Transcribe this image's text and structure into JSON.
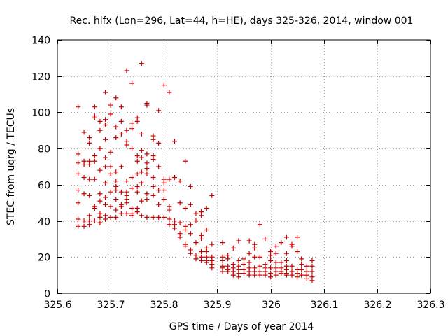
{
  "chart_data": {
    "type": "scatter",
    "title": "Rec. hlfx (Lon=296, Lat=44, h=HE), days 325-326, 2014, window 001",
    "xlabel": "GPS time / Days of year 2014",
    "ylabel": "STEC from uqrg / TECUs",
    "xlim": [
      325.6,
      326.3
    ],
    "ylim": [
      0,
      140
    ],
    "xticks": [
      325.6,
      325.7,
      325.8,
      325.9,
      326,
      326.1,
      326.2,
      326.3
    ],
    "xtick_labels": [
      "325.6",
      "325.7",
      "325.8",
      "325.9",
      "326",
      "326.1",
      "326.2",
      "326.3"
    ],
    "yticks": [
      0,
      20,
      40,
      60,
      80,
      100,
      120,
      140
    ],
    "ytick_labels": [
      "0",
      "20",
      "40",
      "60",
      "80",
      "100",
      "120",
      "140"
    ],
    "grid": true,
    "marker": "+",
    "marker_color": "#cc0000",
    "series": [
      {
        "name": "STEC",
        "points": [
          [
            325.639,
            103
          ],
          [
            325.639,
            77
          ],
          [
            325.639,
            72
          ],
          [
            325.639,
            66
          ],
          [
            325.639,
            57
          ],
          [
            325.639,
            50
          ],
          [
            325.639,
            41
          ],
          [
            325.639,
            37
          ],
          [
            325.65,
            89
          ],
          [
            325.65,
            73
          ],
          [
            325.65,
            71
          ],
          [
            325.65,
            64
          ],
          [
            325.65,
            55
          ],
          [
            325.65,
            40
          ],
          [
            325.65,
            37
          ],
          [
            325.66,
            86
          ],
          [
            325.66,
            83
          ],
          [
            325.66,
            73
          ],
          [
            325.66,
            71
          ],
          [
            325.66,
            63
          ],
          [
            325.66,
            54
          ],
          [
            325.66,
            43
          ],
          [
            325.66,
            40
          ],
          [
            325.66,
            38
          ],
          [
            325.67,
            103
          ],
          [
            325.67,
            98
          ],
          [
            325.67,
            97
          ],
          [
            325.67,
            76
          ],
          [
            325.67,
            73
          ],
          [
            325.67,
            63
          ],
          [
            325.67,
            48
          ],
          [
            325.67,
            47
          ],
          [
            325.67,
            40
          ],
          [
            325.68,
            95
          ],
          [
            325.68,
            90
          ],
          [
            325.68,
            80
          ],
          [
            325.68,
            68
          ],
          [
            325.68,
            55
          ],
          [
            325.68,
            51
          ],
          [
            325.68,
            44
          ],
          [
            325.68,
            42
          ],
          [
            325.68,
            39
          ],
          [
            325.69,
            111
          ],
          [
            325.69,
            96
          ],
          [
            325.69,
            93
          ],
          [
            325.69,
            85
          ],
          [
            325.69,
            75
          ],
          [
            325.69,
            70
          ],
          [
            325.69,
            61
          ],
          [
            325.69,
            53
          ],
          [
            325.69,
            49
          ],
          [
            325.69,
            43
          ],
          [
            325.69,
            41
          ],
          [
            325.7,
            104
          ],
          [
            325.7,
            99
          ],
          [
            325.7,
            78
          ],
          [
            325.7,
            70
          ],
          [
            325.7,
            66
          ],
          [
            325.7,
            56
          ],
          [
            325.7,
            48
          ],
          [
            325.7,
            42
          ],
          [
            325.71,
            108
          ],
          [
            325.71,
            92
          ],
          [
            325.71,
            86
          ],
          [
            325.71,
            67
          ],
          [
            325.71,
            62
          ],
          [
            325.71,
            59
          ],
          [
            325.71,
            57
          ],
          [
            325.71,
            52
          ],
          [
            325.71,
            46
          ],
          [
            325.71,
            42
          ],
          [
            325.72,
            103
          ],
          [
            325.72,
            95
          ],
          [
            325.72,
            88
          ],
          [
            325.72,
            70
          ],
          [
            325.72,
            56
          ],
          [
            325.72,
            49
          ],
          [
            325.72,
            48
          ],
          [
            325.72,
            44
          ],
          [
            325.73,
            123
          ],
          [
            325.73,
            90
          ],
          [
            325.73,
            84
          ],
          [
            325.73,
            82
          ],
          [
            325.73,
            62
          ],
          [
            325.73,
            56
          ],
          [
            325.73,
            54
          ],
          [
            325.73,
            52
          ],
          [
            325.73,
            50
          ],
          [
            325.73,
            44
          ],
          [
            325.74,
            116
          ],
          [
            325.74,
            94
          ],
          [
            325.74,
            91
          ],
          [
            325.74,
            80
          ],
          [
            325.74,
            64
          ],
          [
            325.74,
            58
          ],
          [
            325.74,
            47
          ],
          [
            325.74,
            44
          ],
          [
            325.74,
            43
          ],
          [
            325.75,
            97
          ],
          [
            325.75,
            95
          ],
          [
            325.75,
            76
          ],
          [
            325.75,
            73
          ],
          [
            325.75,
            66
          ],
          [
            325.75,
            59
          ],
          [
            325.75,
            56
          ],
          [
            325.75,
            47
          ],
          [
            325.75,
            45
          ],
          [
            325.758,
            127
          ],
          [
            325.758,
            88
          ],
          [
            325.758,
            79
          ],
          [
            325.758,
            75
          ],
          [
            325.758,
            67
          ],
          [
            325.758,
            61
          ],
          [
            325.758,
            51
          ],
          [
            325.758,
            43
          ],
          [
            325.768,
            105
          ],
          [
            325.768,
            104
          ],
          [
            325.768,
            77
          ],
          [
            325.768,
            72
          ],
          [
            325.768,
            69
          ],
          [
            325.768,
            66
          ],
          [
            325.768,
            55
          ],
          [
            325.768,
            52
          ],
          [
            325.768,
            42
          ],
          [
            325.78,
            87
          ],
          [
            325.78,
            85
          ],
          [
            325.78,
            76
          ],
          [
            325.78,
            74
          ],
          [
            325.78,
            64
          ],
          [
            325.78,
            59
          ],
          [
            325.78,
            54
          ],
          [
            325.78,
            42
          ],
          [
            325.79,
            101
          ],
          [
            325.79,
            83
          ],
          [
            325.79,
            70
          ],
          [
            325.79,
            57
          ],
          [
            325.79,
            49
          ],
          [
            325.79,
            42
          ],
          [
            325.8,
            115
          ],
          [
            325.8,
            63
          ],
          [
            325.8,
            61
          ],
          [
            325.8,
            57
          ],
          [
            325.8,
            52
          ],
          [
            325.8,
            42
          ],
          [
            325.81,
            111
          ],
          [
            325.81,
            63
          ],
          [
            325.81,
            48
          ],
          [
            325.81,
            46
          ],
          [
            325.81,
            41
          ],
          [
            325.81,
            38
          ],
          [
            325.82,
            84
          ],
          [
            325.82,
            64
          ],
          [
            325.82,
            40
          ],
          [
            325.82,
            38
          ],
          [
            325.82,
            36
          ],
          [
            325.83,
            62
          ],
          [
            325.83,
            50
          ],
          [
            325.83,
            39
          ],
          [
            325.83,
            33
          ],
          [
            325.83,
            31
          ],
          [
            325.84,
            73
          ],
          [
            325.84,
            47
          ],
          [
            325.84,
            37
          ],
          [
            325.84,
            35
          ],
          [
            325.84,
            27
          ],
          [
            325.84,
            26
          ],
          [
            325.85,
            59
          ],
          [
            325.85,
            49
          ],
          [
            325.85,
            38
          ],
          [
            325.85,
            33
          ],
          [
            325.85,
            24
          ],
          [
            325.85,
            22
          ],
          [
            325.86,
            44
          ],
          [
            325.86,
            40
          ],
          [
            325.86,
            28
          ],
          [
            325.86,
            21
          ],
          [
            325.86,
            19
          ],
          [
            325.87,
            45
          ],
          [
            325.87,
            43
          ],
          [
            325.87,
            32
          ],
          [
            325.87,
            30
          ],
          [
            325.87,
            23
          ],
          [
            325.87,
            20
          ],
          [
            325.87,
            18
          ],
          [
            325.88,
            47
          ],
          [
            325.88,
            35
          ],
          [
            325.88,
            25
          ],
          [
            325.88,
            23
          ],
          [
            325.88,
            20
          ],
          [
            325.88,
            18
          ],
          [
            325.88,
            17
          ],
          [
            325.89,
            54
          ],
          [
            325.89,
            27
          ],
          [
            325.89,
            20
          ],
          [
            325.89,
            18
          ],
          [
            325.89,
            16
          ],
          [
            325.89,
            14
          ],
          [
            325.91,
            28
          ],
          [
            325.91,
            20
          ],
          [
            325.91,
            18
          ],
          [
            325.91,
            15
          ],
          [
            325.91,
            14
          ],
          [
            325.91,
            12
          ],
          [
            325.92,
            21
          ],
          [
            325.92,
            19
          ],
          [
            325.92,
            15
          ],
          [
            325.92,
            13
          ],
          [
            325.92,
            12
          ],
          [
            325.93,
            25
          ],
          [
            325.93,
            16
          ],
          [
            325.93,
            14
          ],
          [
            325.93,
            12
          ],
          [
            325.93,
            10
          ],
          [
            325.94,
            29
          ],
          [
            325.94,
            18
          ],
          [
            325.94,
            15
          ],
          [
            325.94,
            13
          ],
          [
            325.94,
            11
          ],
          [
            325.94,
            9
          ],
          [
            325.95,
            19
          ],
          [
            325.95,
            16
          ],
          [
            325.95,
            13
          ],
          [
            325.95,
            11
          ],
          [
            325.96,
            29
          ],
          [
            325.96,
            22
          ],
          [
            325.96,
            17
          ],
          [
            325.96,
            14
          ],
          [
            325.96,
            12
          ],
          [
            325.96,
            10
          ],
          [
            325.97,
            27
          ],
          [
            325.97,
            25
          ],
          [
            325.97,
            20
          ],
          [
            325.97,
            14
          ],
          [
            325.97,
            12
          ],
          [
            325.97,
            10
          ],
          [
            325.98,
            38
          ],
          [
            325.98,
            20
          ],
          [
            325.98,
            15
          ],
          [
            325.98,
            12
          ],
          [
            325.98,
            10
          ],
          [
            325.99,
            30
          ],
          [
            325.99,
            16
          ],
          [
            325.99,
            14
          ],
          [
            325.99,
            12
          ],
          [
            325.99,
            10
          ],
          [
            326.0,
            23
          ],
          [
            326.0,
            21
          ],
          [
            326.0,
            18
          ],
          [
            326.0,
            14
          ],
          [
            326.0,
            11
          ],
          [
            326.0,
            9
          ],
          [
            326.01,
            26
          ],
          [
            326.01,
            22
          ],
          [
            326.01,
            17
          ],
          [
            326.01,
            14
          ],
          [
            326.01,
            12
          ],
          [
            326.01,
            10
          ],
          [
            326.02,
            28
          ],
          [
            326.02,
            17
          ],
          [
            326.02,
            14
          ],
          [
            326.02,
            12
          ],
          [
            326.02,
            11
          ],
          [
            326.03,
            31
          ],
          [
            326.03,
            22
          ],
          [
            326.03,
            18
          ],
          [
            326.03,
            15
          ],
          [
            326.03,
            13
          ],
          [
            326.03,
            11
          ],
          [
            326.03,
            10
          ],
          [
            326.04,
            27
          ],
          [
            326.04,
            26
          ],
          [
            326.04,
            15
          ],
          [
            326.04,
            12
          ],
          [
            326.04,
            10
          ],
          [
            326.05,
            31
          ],
          [
            326.05,
            23
          ],
          [
            326.05,
            13
          ],
          [
            326.05,
            11
          ],
          [
            326.05,
            9
          ],
          [
            326.058,
            19
          ],
          [
            326.058,
            16
          ],
          [
            326.058,
            13
          ],
          [
            326.058,
            10
          ],
          [
            326.068,
            15
          ],
          [
            326.068,
            12
          ],
          [
            326.068,
            10
          ],
          [
            326.068,
            8
          ],
          [
            326.078,
            18
          ],
          [
            326.078,
            15
          ],
          [
            326.078,
            12
          ],
          [
            326.078,
            9
          ],
          [
            326.078,
            7
          ]
        ]
      }
    ]
  }
}
